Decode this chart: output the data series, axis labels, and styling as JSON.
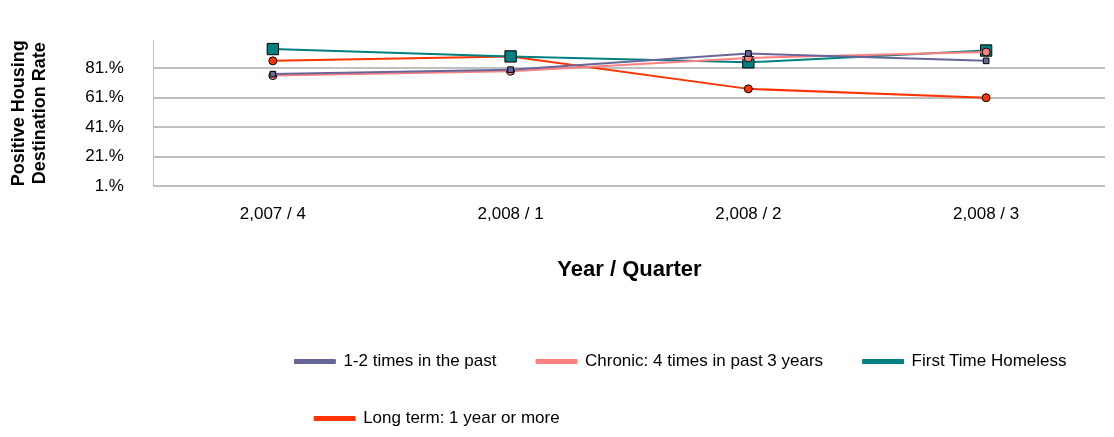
{
  "chart_data": {
    "type": "line",
    "xlabel": "Year / Quarter",
    "ylabel": "Positive Housing\nDestination Rate",
    "categories": [
      "2,007 / 4",
      "2,008 / 1",
      "2,008 / 2",
      "2,008 / 3"
    ],
    "series": [
      {
        "name": "1-2 times in the past",
        "color": "#666699",
        "marker": "square",
        "values": [
          77,
          80,
          91,
          86
        ]
      },
      {
        "name": "Chronic: 4 times in past 3 years",
        "color": "#ff8080",
        "marker": "circle",
        "values": [
          76,
          79,
          88,
          92
        ]
      },
      {
        "name": "First Time Homeless",
        "color": "#008080",
        "marker": "square",
        "values": [
          94,
          89,
          85,
          93
        ]
      },
      {
        "name": "Long term: 1 year or more",
        "color": "#ff3300",
        "marker": "circle",
        "values": [
          86,
          89,
          67,
          61
        ]
      }
    ],
    "ylim": [
      1,
      100
    ],
    "yticks": [
      {
        "value": 1,
        "label": "1.%"
      },
      {
        "value": 21,
        "label": "21.%"
      },
      {
        "value": 41,
        "label": "41.%"
      },
      {
        "value": 61,
        "label": "61.%"
      },
      {
        "value": 81,
        "label": "81.%"
      }
    ],
    "grid": "y",
    "legend": "bottom",
    "line_style": "solid"
  }
}
